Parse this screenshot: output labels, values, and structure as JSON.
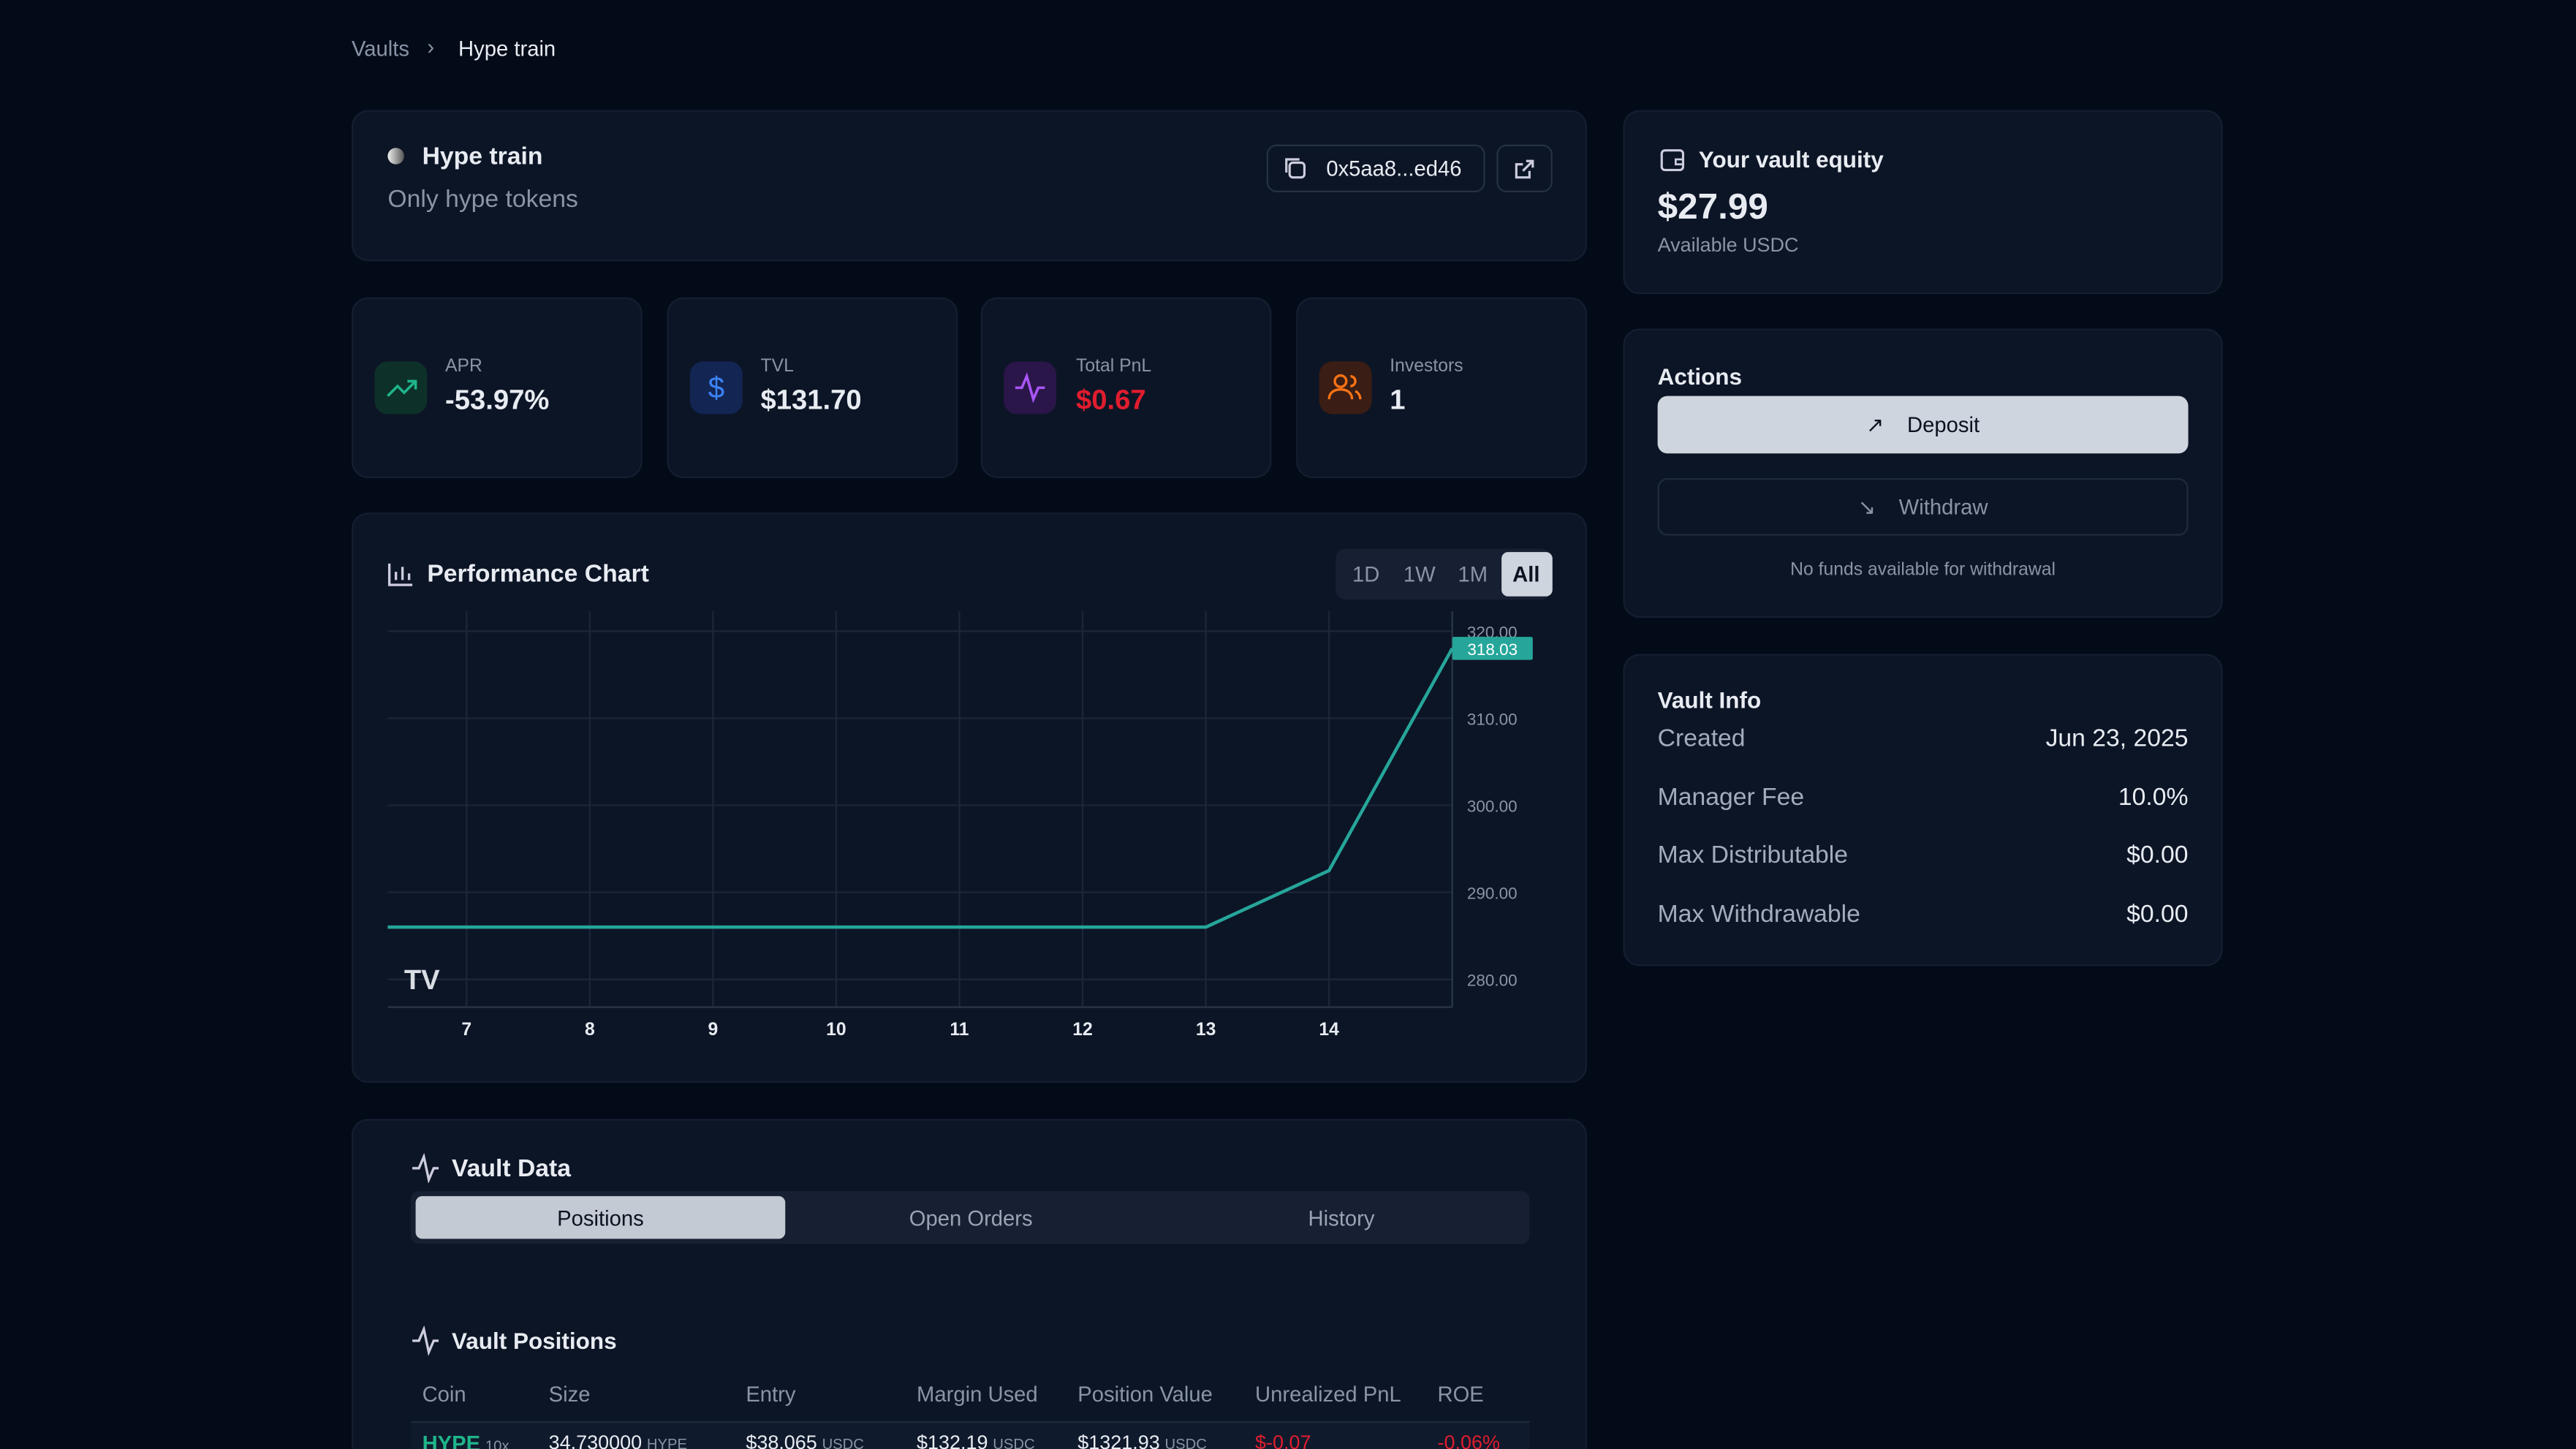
{
  "breadcrumb": [
    "Vaults",
    "Hype train"
  ],
  "vault": {
    "name": "Hype train",
    "description": "Only hype tokens",
    "address": "0x5aa8...ed46"
  },
  "stats": [
    {
      "label": "APR",
      "value": "-53.97%"
    },
    {
      "label": "TVL",
      "value": "$131.70"
    },
    {
      "label": "Total PnL",
      "value": "$0.67"
    },
    {
      "label": "Investors",
      "value": "1"
    }
  ],
  "performance_chart": {
    "type": "line",
    "title": "Performance Chart",
    "ranges": [
      "1D",
      "1W",
      "1M",
      "All"
    ],
    "active_range": "All",
    "x": [
      6.36,
      13,
      14,
      15
    ],
    "values": [
      286,
      286,
      292.5,
      318.03
    ],
    "value_labels": [
      null,
      null,
      null,
      "318.03"
    ],
    "xlim": [
      6.36,
      15
    ],
    "xticks": [
      7,
      8,
      9,
      10,
      11,
      12,
      13,
      14
    ],
    "ylim": [
      276.8,
      322.3
    ],
    "yticks": [
      {
        "value": 280,
        "label": "280.00"
      },
      {
        "value": 290,
        "label": "290.00"
      },
      {
        "value": 300,
        "label": "300.00"
      },
      {
        "value": 310,
        "label": "310.00"
      },
      {
        "value": 320,
        "label": "320.00"
      }
    ],
    "color": "#26a69a",
    "grid": true
  },
  "equity": {
    "title": "Your vault equity",
    "amount": "$27.99",
    "note": "Available USDC"
  },
  "actions": {
    "title": "Actions",
    "deposit": "Deposit",
    "withdraw": "Withdraw",
    "note": "No funds available for withdrawal"
  },
  "vault_info": {
    "title": "Vault Info",
    "rows": [
      [
        "Created",
        "Jun 23, 2025"
      ],
      [
        "Manager Fee",
        "10.0%"
      ],
      [
        "Max Distributable",
        "$0.00"
      ],
      [
        "Max Withdrawable",
        "$0.00"
      ]
    ]
  },
  "vault_data": {
    "title": "Vault Data",
    "tabs": [
      "Positions",
      "Open Orders",
      "History"
    ],
    "active_tab": "Positions"
  },
  "positions": {
    "title": "Vault Positions",
    "columns": [
      "Coin",
      "Size",
      "Entry",
      "Margin Used",
      "Position Value",
      "Unrealized PnL",
      "ROE"
    ],
    "rows": [
      [
        [
          "HYPE",
          "10x"
        ],
        [
          "34.730000",
          "HYPE"
        ],
        [
          "$38.065",
          "USDC"
        ],
        [
          "$132.19",
          "USDC"
        ],
        [
          "$1321.93",
          "USDC"
        ],
        [
          "$-0.07"
        ],
        [
          "-0.06%"
        ]
      ]
    ]
  }
}
